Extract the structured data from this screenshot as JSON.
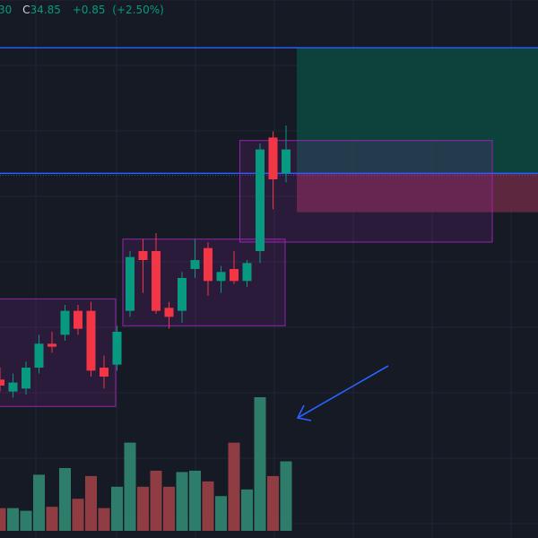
{
  "legend": {
    "partial_value": "30",
    "close_label": "C",
    "close_value": "34.85",
    "change": "+0.85",
    "change_pct": "(+2.50%)"
  },
  "colors": {
    "background": "#161a25",
    "grid": "#222633",
    "up": "#089981",
    "down": "#f23645",
    "up_volume": "#2e7d6b",
    "down_volume": "#8f3c43",
    "horizontal_line": "#2962ff",
    "zone_border": "#9c27b0",
    "zone_fill": "#9c27b0",
    "profit_fill": "#0b4f43",
    "loss_fill": "#6b2a45",
    "arrow": "#2962ff"
  },
  "chart_data": {
    "type": "candlestick",
    "y_range": [
      27.5,
      36.5
    ],
    "candles": [
      {
        "o": 30.15,
        "h": 30.35,
        "l": 29.95,
        "c": 30.05
      },
      {
        "o": 29.95,
        "h": 30.25,
        "l": 29.85,
        "c": 30.1
      },
      {
        "o": 30.0,
        "h": 30.45,
        "l": 29.9,
        "c": 30.35
      },
      {
        "o": 30.35,
        "h": 30.9,
        "l": 30.25,
        "c": 30.75
      },
      {
        "o": 30.75,
        "h": 30.95,
        "l": 30.6,
        "c": 30.7
      },
      {
        "o": 30.9,
        "h": 31.4,
        "l": 30.8,
        "c": 31.3
      },
      {
        "o": 31.3,
        "h": 31.4,
        "l": 30.9,
        "c": 31.0
      },
      {
        "o": 31.3,
        "h": 31.45,
        "l": 30.2,
        "c": 30.3
      },
      {
        "o": 30.35,
        "h": 30.55,
        "l": 30.0,
        "c": 30.2
      },
      {
        "o": 30.4,
        "h": 31.05,
        "l": 30.3,
        "c": 30.95
      },
      {
        "o": 31.3,
        "h": 32.3,
        "l": 31.2,
        "c": 32.2
      },
      {
        "o": 32.3,
        "h": 32.5,
        "l": 31.6,
        "c": 32.15
      },
      {
        "o": 32.3,
        "h": 32.6,
        "l": 31.25,
        "c": 31.3
      },
      {
        "o": 31.35,
        "h": 31.45,
        "l": 31.0,
        "c": 31.2
      },
      {
        "o": 31.3,
        "h": 31.95,
        "l": 31.1,
        "c": 31.85
      },
      {
        "o": 32.0,
        "h": 32.5,
        "l": 31.85,
        "c": 32.15
      },
      {
        "o": 32.35,
        "h": 32.45,
        "l": 31.55,
        "c": 31.8
      },
      {
        "o": 31.8,
        "h": 32.05,
        "l": 31.6,
        "c": 31.95
      },
      {
        "o": 32.0,
        "h": 32.3,
        "l": 31.75,
        "c": 31.8
      },
      {
        "o": 31.8,
        "h": 32.15,
        "l": 31.7,
        "c": 32.1
      },
      {
        "o": 32.3,
        "h": 34.1,
        "l": 32.1,
        "c": 34.0
      },
      {
        "o": 34.2,
        "h": 34.3,
        "l": 33.0,
        "c": 33.5
      },
      {
        "o": 33.6,
        "h": 34.4,
        "l": 33.45,
        "c": 34.0
      }
    ],
    "volumes": [
      0.17,
      0.17,
      0.15,
      0.42,
      0.18,
      0.47,
      0.24,
      0.41,
      0.17,
      0.33,
      0.66,
      0.33,
      0.45,
      0.33,
      0.44,
      0.45,
      0.37,
      0.26,
      0.66,
      0.31,
      1.0,
      0.41,
      0.52
    ],
    "horizontal_lines": [
      35.7,
      33.6
    ],
    "consolidation_zones": [
      {
        "first": 0,
        "last": 8,
        "top": 31.5,
        "bottom": 29.7
      },
      {
        "first": 10,
        "last": 20,
        "top": 32.5,
        "bottom": 31.05
      },
      {
        "first": 19,
        "last": 22,
        "top": 34.15,
        "bottom": 32.45
      }
    ],
    "position": {
      "entry": 33.6,
      "target": 35.7,
      "stop": 32.95,
      "box_top": 34.15,
      "box_bottom": 32.95
    },
    "annotation": "arrow-pointing-to-volume-spike"
  }
}
